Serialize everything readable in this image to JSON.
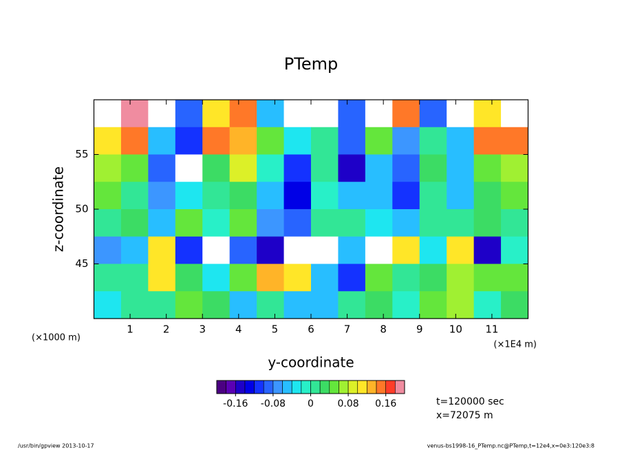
{
  "chart_data": {
    "type": "heatmap",
    "title": "PTemp",
    "xlabel": "y-coordinate",
    "ylabel": "z-coordinate",
    "x_unit_left": "(×1000 m)",
    "x_unit_right": "(×1E4 m)",
    "xlim": [
      0,
      12
    ],
    "ylim": [
      40,
      60
    ],
    "xticks": [
      1,
      2,
      3,
      4,
      5,
      6,
      7,
      8,
      9,
      10,
      11
    ],
    "yticks": [
      45,
      50,
      55
    ],
    "xbins": [
      0,
      0.75,
      1.5,
      2.25,
      3,
      3.75,
      4.5,
      5.25,
      6,
      6.75,
      7.5,
      8.25,
      9,
      9.75,
      10.5,
      11.25,
      12
    ],
    "ybins": [
      60,
      57.5,
      55,
      52.5,
      50,
      47.5,
      45,
      42.5,
      40
    ],
    "z": [
      [
        0.25,
        0.18,
        0.25,
        -0.1,
        0.1,
        0.15,
        -0.05,
        0.25,
        0.2,
        -0.1,
        0.25,
        0.15,
        -0.1,
        0.25,
        0.1,
        0.2
      ],
      [
        0.12,
        0.14,
        -0.05,
        -0.12,
        0.15,
        0.13,
        0.05,
        -0.03,
        0.02,
        -0.1,
        0.04,
        -0.08,
        0.02,
        -0.05,
        0.14,
        0.15
      ],
      [
        0.06,
        0.05,
        -0.1,
        0.25,
        0.03,
        0.08,
        -0.02,
        -0.12,
        0.0,
        -0.15,
        -0.04,
        -0.1,
        0.03,
        -0.06,
        0.05,
        0.06
      ],
      [
        0.04,
        0.02,
        -0.08,
        -0.03,
        0.02,
        0.03,
        -0.05,
        -0.14,
        -0.02,
        -0.04,
        -0.06,
        -0.12,
        0.01,
        -0.04,
        0.03,
        0.04
      ],
      [
        0.02,
        0.03,
        -0.06,
        0.05,
        -0.02,
        0.04,
        -0.08,
        -0.1,
        0.0,
        0.02,
        -0.03,
        -0.05,
        0.0,
        0.02,
        0.03,
        0.02
      ],
      [
        -0.08,
        -0.04,
        0.1,
        -0.12,
        0.25,
        -0.1,
        -0.15,
        0.25,
        0.22,
        -0.05,
        0.25,
        0.1,
        -0.03,
        0.12,
        -0.15,
        -0.02
      ],
      [
        0.0,
        0.02,
        0.12,
        0.03,
        -0.03,
        0.04,
        0.13,
        0.1,
        -0.05,
        -0.12,
        0.05,
        0.02,
        0.03,
        0.06,
        0.05,
        0.04
      ],
      [
        -0.03,
        0.02,
        0.0,
        0.04,
        0.03,
        -0.05,
        0.02,
        -0.04,
        -0.06,
        0.01,
        0.03,
        -0.02,
        0.04,
        0.06,
        -0.02,
        0.03
      ]
    ],
    "clim": [
      -0.2,
      0.2
    ],
    "cticks": [
      -0.16,
      -0.08,
      0,
      0.08,
      0.16
    ],
    "colormap": [
      "#4b0082",
      "#5a00b4",
      "#1e00c8",
      "#0000e6",
      "#1432ff",
      "#2864ff",
      "#3c96ff",
      "#28beff",
      "#1ee6f0",
      "#28f0c8",
      "#32e696",
      "#3cdc64",
      "#64e63c",
      "#a0f032",
      "#dcf028",
      "#ffe628",
      "#ffb428",
      "#ff7828",
      "#ff3c28",
      "#f08ca0"
    ],
    "over_color": "#ffffff",
    "annotations": [
      "t=120000 sec",
      "x=72075 m"
    ],
    "footer_left": "/usr/bin/gpview  2013-10-17",
    "footer_right": "venus-bs1998-16_PTemp.nc@PTemp,t=12e4,x=0e3:120e3:8"
  }
}
